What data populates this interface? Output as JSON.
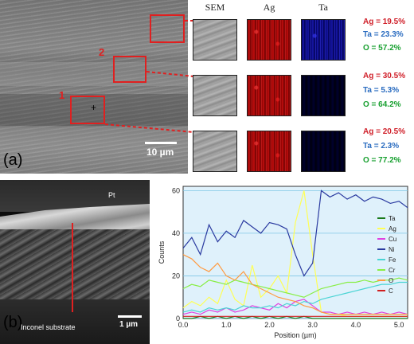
{
  "panel_a": {
    "label": "(a)",
    "scale_bar": "10 µm",
    "region_labels": [
      "1",
      "2"
    ],
    "headers": {
      "sem": "SEM",
      "ag": "Ag",
      "ta": "Ta"
    },
    "rows": [
      {
        "ag": "Ag = 19.5%",
        "ta": "Ta = 23.3%",
        "o": "O = 57.2%"
      },
      {
        "ag": "Ag = 30.5%",
        "ta": "Ta = 5.3%",
        "o": "O = 64.2%"
      },
      {
        "ag": "Ag = 20.5%",
        "ta": "Ta = 2.3%",
        "o": "O = 77.2%"
      }
    ]
  },
  "panel_b": {
    "label": "(b)",
    "top_label": "Pt",
    "substrate_label": "Inconel substrate",
    "scale_bar": "1 µm"
  },
  "chart_data": {
    "type": "line",
    "xlabel": "Position (µm)",
    "ylabel": "Counts",
    "xlim": [
      0,
      5.2
    ],
    "ylim": [
      0,
      62
    ],
    "xticks": [
      0.0,
      1.0,
      2.0,
      3.0,
      4.0,
      5.0
    ],
    "yticks": [
      0,
      20,
      40,
      60
    ],
    "grid": true,
    "legend_position": "right",
    "x": [
      0.0,
      0.2,
      0.4,
      0.6,
      0.8,
      1.0,
      1.2,
      1.4,
      1.6,
      1.8,
      2.0,
      2.2,
      2.4,
      2.6,
      2.8,
      3.0,
      3.2,
      3.4,
      3.6,
      3.8,
      4.0,
      4.2,
      4.4,
      4.6,
      4.8,
      5.0,
      5.2
    ],
    "series": [
      {
        "name": "Ta",
        "color": "#1a7a1a",
        "values": [
          0,
          0,
          1,
          0,
          1,
          0,
          1,
          0,
          1,
          0,
          1,
          0,
          1,
          0,
          1,
          0,
          0,
          0,
          0,
          0,
          0,
          0,
          0,
          0,
          0,
          0,
          0
        ]
      },
      {
        "name": "Ag",
        "color": "#ffff55",
        "values": [
          5,
          8,
          6,
          10,
          7,
          18,
          9,
          6,
          25,
          10,
          14,
          20,
          12,
          45,
          60,
          30,
          3,
          2,
          2,
          1,
          1,
          1,
          1,
          1,
          1,
          1,
          1
        ]
      },
      {
        "name": "Cu",
        "color": "#e040e0",
        "values": [
          2,
          3,
          2,
          4,
          3,
          5,
          3,
          4,
          6,
          5,
          4,
          7,
          5,
          8,
          9,
          6,
          3,
          3,
          2,
          3,
          2,
          3,
          2,
          3,
          2,
          3,
          2
        ]
      },
      {
        "name": "Ni",
        "color": "#2a3aa0",
        "values": [
          33,
          38,
          30,
          44,
          36,
          41,
          38,
          46,
          43,
          40,
          45,
          44,
          42,
          30,
          20,
          26,
          60,
          57,
          59,
          56,
          58,
          55,
          57,
          56,
          54,
          55,
          52
        ]
      },
      {
        "name": "Fe",
        "color": "#4ad4d4",
        "values": [
          3,
          4,
          3,
          5,
          4,
          5,
          4,
          6,
          5,
          5,
          6,
          5,
          7,
          6,
          8,
          7,
          9,
          10,
          11,
          12,
          13,
          14,
          15,
          16,
          16,
          17,
          17
        ]
      },
      {
        "name": "Cr",
        "color": "#88ee44",
        "values": [
          14,
          16,
          15,
          18,
          17,
          16,
          18,
          17,
          16,
          15,
          14,
          13,
          12,
          11,
          10,
          12,
          14,
          15,
          16,
          17,
          17,
          18,
          17,
          18,
          18,
          19,
          18
        ]
      },
      {
        "name": "O",
        "color": "#ff9a40",
        "values": [
          30,
          28,
          24,
          22,
          26,
          20,
          18,
          22,
          16,
          14,
          12,
          10,
          9,
          8,
          6,
          5,
          3,
          2,
          2,
          2,
          2,
          2,
          2,
          2,
          2,
          2,
          2
        ]
      },
      {
        "name": "C",
        "color": "#d02020",
        "values": [
          1,
          1,
          1,
          1,
          1,
          1,
          1,
          1,
          1,
          1,
          1,
          1,
          1,
          1,
          1,
          1,
          1,
          1,
          1,
          1,
          1,
          1,
          1,
          1,
          1,
          1,
          1
        ]
      }
    ]
  }
}
